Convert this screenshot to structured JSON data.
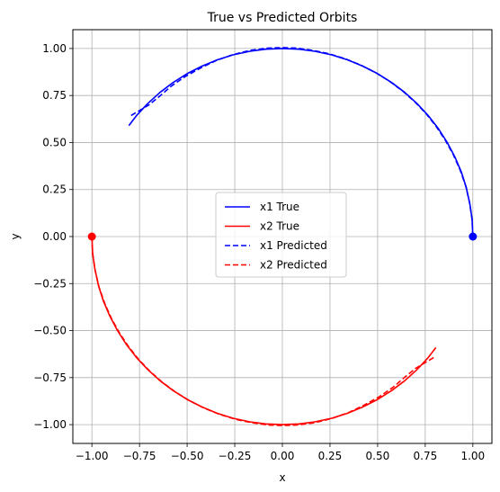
{
  "chart_data": {
    "type": "line",
    "title": "True vs Predicted Orbits",
    "xlabel": "x",
    "ylabel": "y",
    "xlim": [
      -1.1,
      1.1
    ],
    "ylim": [
      -1.1,
      1.1
    ],
    "xticks": [
      -1.0,
      -0.75,
      -0.5,
      -0.25,
      0.0,
      0.25,
      0.5,
      0.75,
      1.0
    ],
    "yticks": [
      -1.0,
      -0.75,
      -0.5,
      -0.25,
      0.0,
      0.25,
      0.5,
      0.75,
      1.0
    ],
    "xtick_labels": [
      "−1.00",
      "−0.75",
      "−0.50",
      "−0.25",
      "0.00",
      "0.25",
      "0.50",
      "0.75",
      "1.00"
    ],
    "ytick_labels": [
      "−1.00",
      "−0.75",
      "−0.50",
      "−0.25",
      "0.00",
      "0.25",
      "0.50",
      "0.75",
      "1.00"
    ],
    "grid": true,
    "legend_position": "center",
    "series": [
      {
        "name": "x1 True",
        "color": "#0000ff",
        "style": "solid",
        "points": [
          [
            1.0,
            0.0
          ],
          [
            0.996,
            0.09
          ],
          [
            0.985,
            0.17
          ],
          [
            0.966,
            0.259
          ],
          [
            0.94,
            0.342
          ],
          [
            0.906,
            0.423
          ],
          [
            0.866,
            0.5
          ],
          [
            0.819,
            0.574
          ],
          [
            0.766,
            0.643
          ],
          [
            0.707,
            0.707
          ],
          [
            0.643,
            0.766
          ],
          [
            0.574,
            0.819
          ],
          [
            0.5,
            0.866
          ],
          [
            0.423,
            0.906
          ],
          [
            0.342,
            0.94
          ],
          [
            0.259,
            0.966
          ],
          [
            0.17,
            0.985
          ],
          [
            0.087,
            0.996
          ],
          [
            0.0,
            1.0
          ],
          [
            -0.087,
            0.996
          ],
          [
            -0.17,
            0.985
          ],
          [
            -0.259,
            0.966
          ],
          [
            -0.342,
            0.94
          ],
          [
            -0.423,
            0.906
          ],
          [
            -0.5,
            0.866
          ],
          [
            -0.574,
            0.819
          ],
          [
            -0.643,
            0.766
          ],
          [
            -0.707,
            0.707
          ],
          [
            -0.766,
            0.643
          ],
          [
            -0.806,
            0.59
          ]
        ]
      },
      {
        "name": "x2 True",
        "color": "#ff0000",
        "style": "solid",
        "points": [
          [
            -1.0,
            0.0
          ],
          [
            -0.996,
            -0.09
          ],
          [
            -0.985,
            -0.17
          ],
          [
            -0.966,
            -0.259
          ],
          [
            -0.94,
            -0.342
          ],
          [
            -0.906,
            -0.423
          ],
          [
            -0.866,
            -0.5
          ],
          [
            -0.819,
            -0.574
          ],
          [
            -0.766,
            -0.643
          ],
          [
            -0.707,
            -0.707
          ],
          [
            -0.643,
            -0.766
          ],
          [
            -0.574,
            -0.819
          ],
          [
            -0.5,
            -0.866
          ],
          [
            -0.423,
            -0.906
          ],
          [
            -0.342,
            -0.94
          ],
          [
            -0.259,
            -0.966
          ],
          [
            -0.17,
            -0.985
          ],
          [
            -0.087,
            -0.996
          ],
          [
            0.0,
            -1.0
          ],
          [
            0.087,
            -0.996
          ],
          [
            0.17,
            -0.985
          ],
          [
            0.259,
            -0.966
          ],
          [
            0.342,
            -0.94
          ],
          [
            0.423,
            -0.906
          ],
          [
            0.5,
            -0.866
          ],
          [
            0.574,
            -0.819
          ],
          [
            0.643,
            -0.766
          ],
          [
            0.707,
            -0.707
          ],
          [
            0.766,
            -0.643
          ],
          [
            0.806,
            -0.59
          ]
        ]
      },
      {
        "name": "x1 Predicted",
        "color": "#0000ff",
        "style": "dashed",
        "points": [
          [
            1.0,
            0.0
          ],
          [
            0.996,
            0.09
          ],
          [
            0.983,
            0.18
          ],
          [
            0.962,
            0.27
          ],
          [
            0.933,
            0.355
          ],
          [
            0.897,
            0.436
          ],
          [
            0.855,
            0.513
          ],
          [
            0.808,
            0.585
          ],
          [
            0.755,
            0.653
          ],
          [
            0.696,
            0.716
          ],
          [
            0.631,
            0.774
          ],
          [
            0.561,
            0.827
          ],
          [
            0.487,
            0.873
          ],
          [
            0.409,
            0.913
          ],
          [
            0.328,
            0.946
          ],
          [
            0.245,
            0.972
          ],
          [
            0.16,
            0.99
          ],
          [
            0.075,
            1.002
          ],
          [
            0.0,
            1.005
          ],
          [
            -0.08,
            1.002
          ],
          [
            -0.17,
            0.99
          ],
          [
            -0.26,
            0.967
          ],
          [
            -0.35,
            0.935
          ],
          [
            -0.43,
            0.896
          ],
          [
            -0.51,
            0.851
          ],
          [
            -0.58,
            0.802
          ],
          [
            -0.64,
            0.75
          ],
          [
            -0.7,
            0.7
          ],
          [
            -0.75,
            0.67
          ],
          [
            -0.8,
            0.64
          ]
        ]
      },
      {
        "name": "x2 Predicted",
        "color": "#ff0000",
        "style": "dashed",
        "points": [
          [
            -1.0,
            0.0
          ],
          [
            -0.996,
            -0.09
          ],
          [
            -0.983,
            -0.18
          ],
          [
            -0.962,
            -0.27
          ],
          [
            -0.933,
            -0.355
          ],
          [
            -0.897,
            -0.436
          ],
          [
            -0.855,
            -0.513
          ],
          [
            -0.808,
            -0.585
          ],
          [
            -0.755,
            -0.653
          ],
          [
            -0.696,
            -0.716
          ],
          [
            -0.631,
            -0.774
          ],
          [
            -0.561,
            -0.827
          ],
          [
            -0.487,
            -0.873
          ],
          [
            -0.409,
            -0.913
          ],
          [
            -0.328,
            -0.946
          ],
          [
            -0.245,
            -0.972
          ],
          [
            -0.16,
            -0.99
          ],
          [
            -0.075,
            -1.002
          ],
          [
            0.0,
            -1.005
          ],
          [
            0.08,
            -1.002
          ],
          [
            0.17,
            -0.99
          ],
          [
            0.26,
            -0.967
          ],
          [
            0.35,
            -0.935
          ],
          [
            0.43,
            -0.896
          ],
          [
            0.51,
            -0.851
          ],
          [
            0.58,
            -0.802
          ],
          [
            0.64,
            -0.75
          ],
          [
            0.7,
            -0.7
          ],
          [
            0.75,
            -0.67
          ],
          [
            0.8,
            -0.64
          ]
        ]
      }
    ],
    "markers": [
      {
        "x": 1.0,
        "y": 0.0,
        "color": "#0000ff"
      },
      {
        "x": -1.0,
        "y": 0.0,
        "color": "#ff0000"
      }
    ]
  }
}
